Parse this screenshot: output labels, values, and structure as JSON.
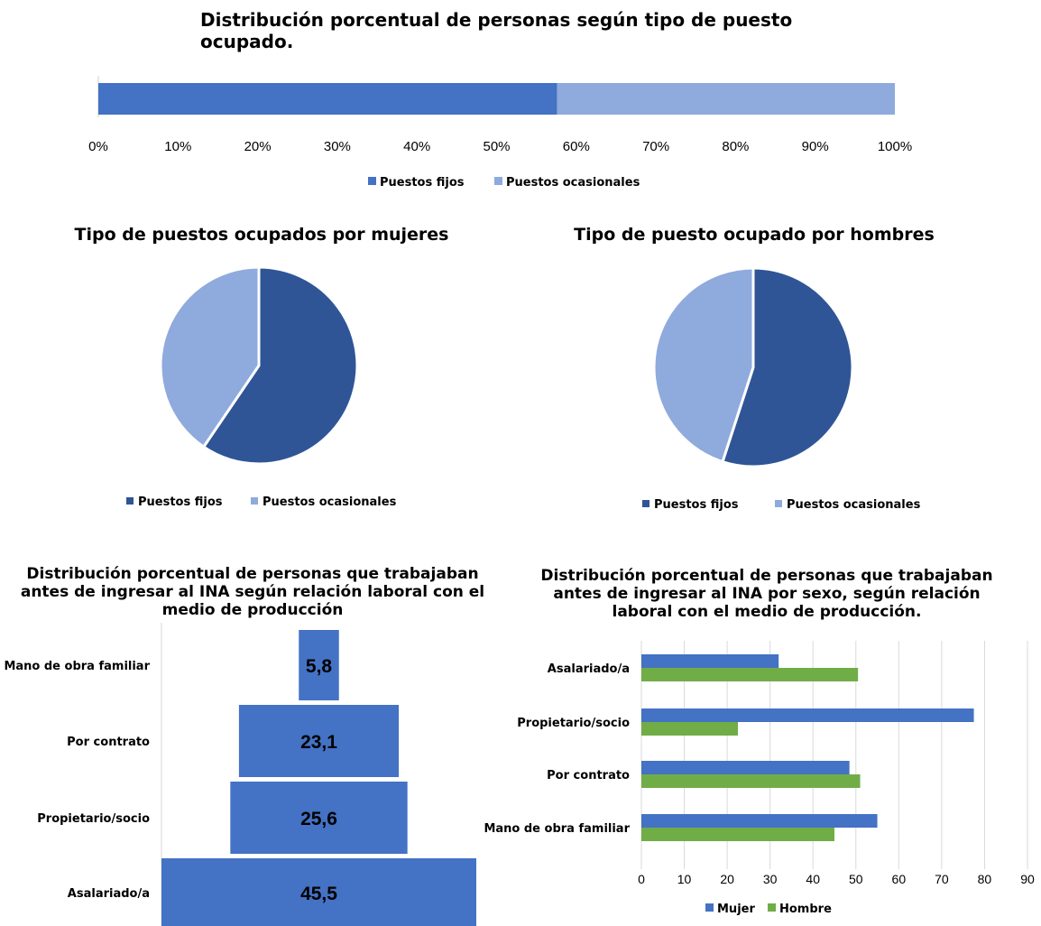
{
  "chart_data": [
    {
      "type": "bar",
      "orientation": "horizontal",
      "stacked": true,
      "title": "Distribución porcentual de personas según tipo de puesto ocupado.",
      "x_ticks": [
        "0%",
        "10%",
        "20%",
        "30%",
        "40%",
        "50%",
        "60%",
        "70%",
        "80%",
        "90%",
        "100%"
      ],
      "xlim": [
        0,
        100
      ],
      "series": [
        {
          "name": "Puestos fijos",
          "values": [
            57.6
          ],
          "color": "#4472C4"
        },
        {
          "name": "Puestos ocasionales",
          "values": [
            42.4
          ],
          "color": "#8FAADC"
        }
      ],
      "legend_position": "bottom"
    },
    {
      "type": "pie",
      "title": "Tipo de puestos ocupados por mujeres",
      "labels": [
        "Puestos fijos",
        "Puestos ocasionales"
      ],
      "values": [
        59.5,
        40.5
      ],
      "colors": [
        "#2F5597",
        "#8FAADC"
      ],
      "legend_position": "bottom"
    },
    {
      "type": "pie",
      "title": "Tipo de puesto ocupado por hombres",
      "labels": [
        "Puestos fijos",
        "Puestos ocasionales"
      ],
      "values": [
        55.0,
        45.0
      ],
      "colors": [
        "#2F5597",
        "#8FAADC"
      ],
      "legend_position": "bottom"
    },
    {
      "type": "bar",
      "orientation": "horizontal",
      "centered": true,
      "title": "Distribución porcentual de personas que trabajaban antes de ingresar al INA según relación laboral con el medio de producción",
      "categories": [
        "Mano de obra familiar",
        "Por contrato",
        "Propietario/socio",
        "Asalariado/a"
      ],
      "values": [
        5.8,
        23.1,
        25.6,
        45.5
      ],
      "value_labels": [
        "5,8",
        "23,1",
        "25,6",
        "45,5"
      ],
      "color": "#4472C4"
    },
    {
      "type": "bar",
      "orientation": "horizontal",
      "title": "Distribución porcentual de personas que trabajaban antes de ingresar al INA por sexo, según relación laboral con el medio de producción.",
      "categories": [
        "Asalariado/a",
        "Propietario/socio",
        "Por contrato",
        "Mano de obra familiar"
      ],
      "x_ticks": [
        "0",
        "10",
        "20",
        "30",
        "40",
        "50",
        "60",
        "70",
        "80",
        "90"
      ],
      "xlim": [
        0,
        90
      ],
      "series": [
        {
          "name": "Mujer",
          "values": [
            32,
            77.5,
            48.5,
            55
          ],
          "color": "#4472C4"
        },
        {
          "name": "Hombre",
          "values": [
            50.5,
            22.5,
            51,
            45
          ],
          "color": "#70AD47"
        }
      ],
      "grid": true,
      "legend_position": "bottom"
    }
  ]
}
